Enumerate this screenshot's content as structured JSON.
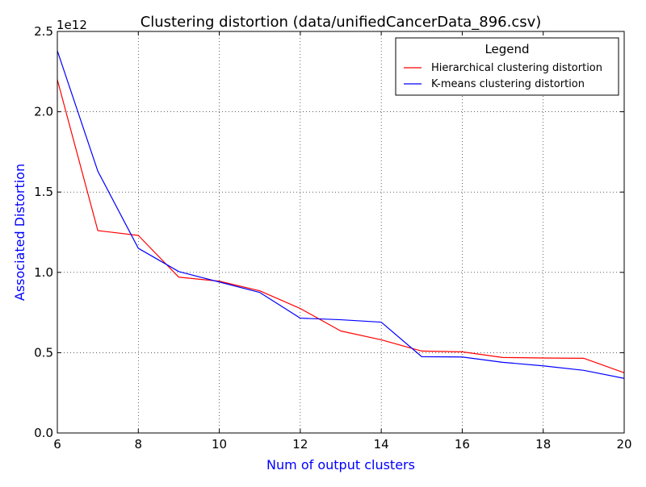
{
  "chart_data": {
    "type": "line",
    "title": "Clustering distortion (data/unifiedCancerData_896.csv)",
    "xlabel": "Num of output clusters",
    "ylabel": "Associated Distortion",
    "axis_label_color": "#0000ff",
    "y_scale_label": "1e12",
    "y_scale": 1000000000000.0,
    "xlim": [
      6,
      20
    ],
    "ylim": [
      0,
      2.5
    ],
    "x_ticks": [
      6,
      8,
      10,
      12,
      14,
      16,
      18,
      20
    ],
    "x_tick_labels": [
      "6",
      "8",
      "10",
      "12",
      "14",
      "16",
      "18",
      "20"
    ],
    "y_ticks": [
      0,
      0.5,
      1.0,
      1.5,
      2.0,
      2.5
    ],
    "y_tick_labels": [
      "0.0",
      "0.5",
      "1.0",
      "1.5",
      "2.0",
      "2.5"
    ],
    "grid": true,
    "legend": {
      "title": "Legend",
      "placement": "top-right"
    },
    "x": [
      6,
      7,
      8,
      9,
      10,
      11,
      12,
      13,
      14,
      15,
      16,
      17,
      18,
      19,
      20
    ],
    "series": [
      {
        "name": "Hierarchical clustering distortion",
        "color": "#ff0000",
        "values": [
          2.2,
          1.26,
          1.23,
          0.97,
          0.945,
          0.885,
          0.775,
          0.635,
          0.58,
          0.51,
          0.505,
          0.47,
          0.467,
          0.465,
          0.375
        ]
      },
      {
        "name": "K-means clustering distortion",
        "color": "#0000ff",
        "values": [
          2.38,
          1.63,
          1.15,
          1.005,
          0.94,
          0.875,
          0.715,
          0.705,
          0.69,
          0.475,
          0.473,
          0.44,
          0.418,
          0.39,
          0.34
        ]
      }
    ]
  }
}
